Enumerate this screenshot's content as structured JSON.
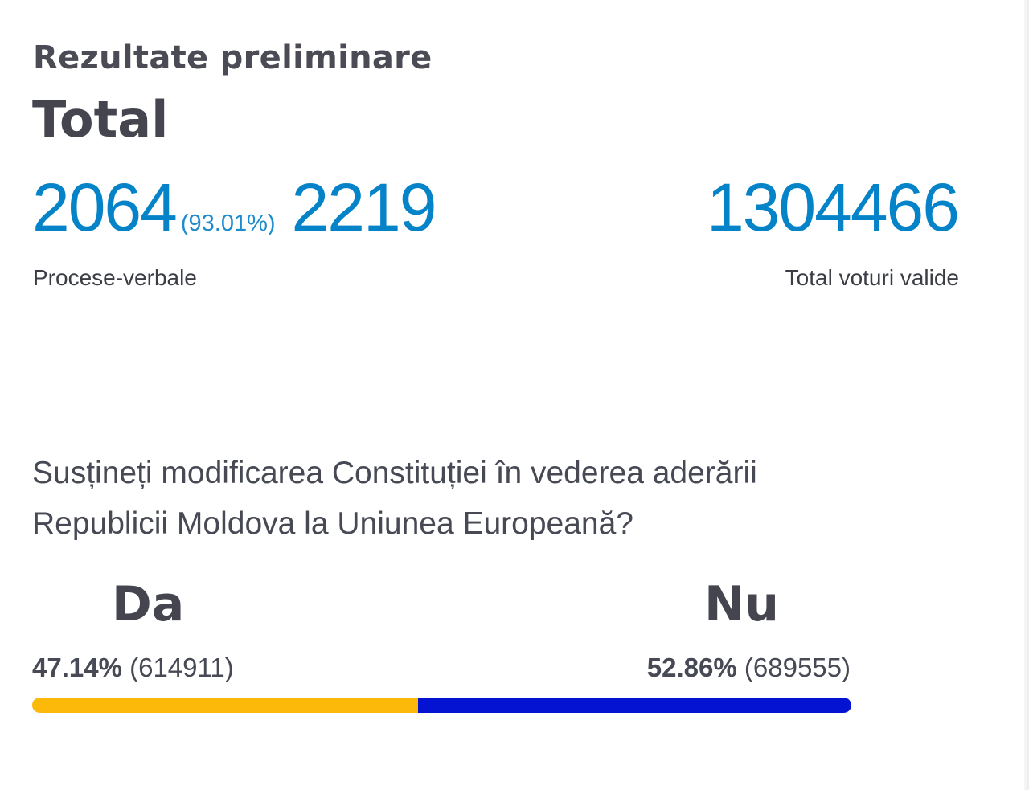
{
  "header": {
    "title": "Rezultate preliminare",
    "subtitle": "Total"
  },
  "stats": {
    "processed": "2064",
    "processed_percent": "(93.01%)",
    "total_protocols": "2219",
    "protocols_label": "Procese-verbale",
    "valid_votes": "1304466",
    "valid_votes_label": "Total voturi valide"
  },
  "question": {
    "line1": "Susțineți modificarea Constituției în vederea aderării",
    "line2": "Republicii Moldova la Uniunea Europeană?"
  },
  "options": {
    "yes": {
      "label": "Da",
      "percent_text": "47.14%",
      "votes_text": "(614911)",
      "share": 47.14,
      "color": "#fdb90a"
    },
    "no": {
      "label": "Nu",
      "percent_text": "52.86%",
      "votes_text": "(689555)",
      "share": 52.86,
      "color": "#0413d2"
    }
  },
  "colors": {
    "accent_blue": "#0583c8",
    "text_dark": "#44454f"
  }
}
